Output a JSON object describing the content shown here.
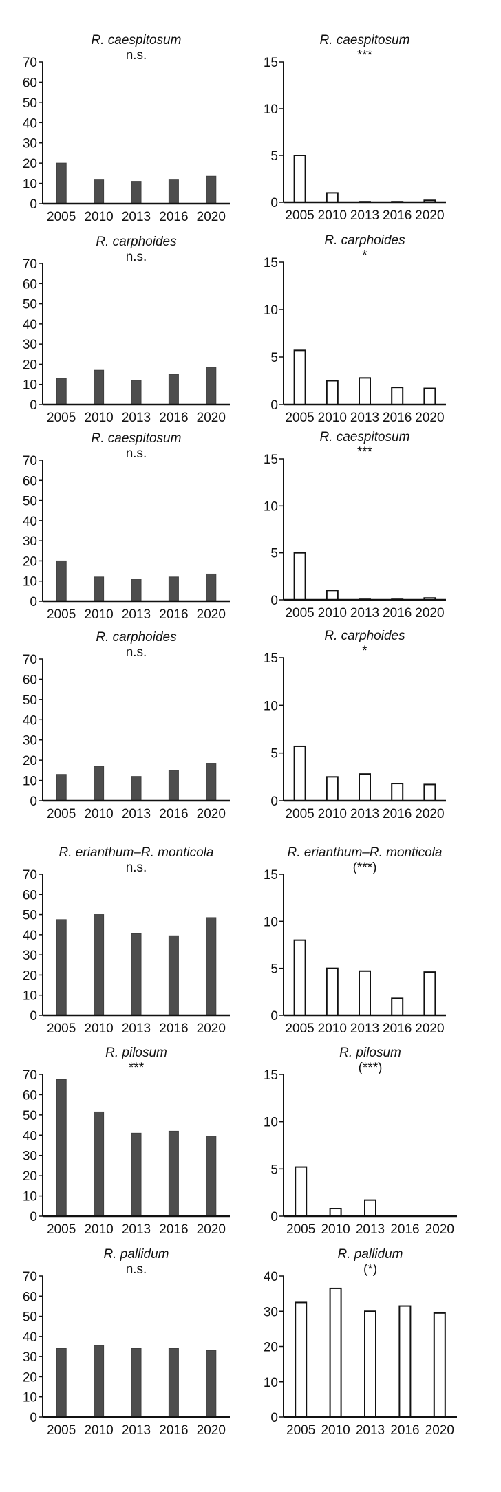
{
  "chart_data": [
    {
      "type": "bar",
      "title": "R. caespitosum",
      "subtitle": "n.s.",
      "categories": [
        "2005",
        "2010",
        "2013",
        "2016",
        "2020"
      ],
      "values": [
        20,
        12,
        11,
        12,
        13.5
      ],
      "ylim": [
        0,
        70
      ],
      "yticks": [
        0,
        10,
        20,
        30,
        40,
        50,
        60,
        70
      ],
      "bar_color": "#4d4d4d",
      "filled": true
    },
    {
      "type": "bar",
      "title": "R. caespitosum",
      "subtitle": "***",
      "categories": [
        "2005",
        "2010",
        "2013",
        "2016",
        "2020"
      ],
      "values": [
        5,
        1,
        0.05,
        0.05,
        0.2
      ],
      "ylim": [
        0,
        15
      ],
      "yticks": [
        0,
        5,
        10,
        15
      ],
      "bar_color": "#ffffff",
      "filled": false
    },
    {
      "type": "bar",
      "title": "R. carphoides",
      "subtitle": "n.s.",
      "categories": [
        "2005",
        "2010",
        "2013",
        "2016",
        "2020"
      ],
      "values": [
        13,
        17,
        12,
        15,
        18.5
      ],
      "ylim": [
        0,
        70
      ],
      "yticks": [
        0,
        10,
        20,
        30,
        40,
        50,
        60,
        70
      ],
      "bar_color": "#4d4d4d",
      "filled": true
    },
    {
      "type": "bar",
      "title": "R. carphoides",
      "subtitle": "*",
      "categories": [
        "2005",
        "2010",
        "2013",
        "2016",
        "2020"
      ],
      "values": [
        5.7,
        2.5,
        2.8,
        1.8,
        1.7
      ],
      "ylim": [
        0,
        15
      ],
      "yticks": [
        0,
        5,
        10,
        15
      ],
      "bar_color": "#ffffff",
      "filled": false
    },
    {
      "type": "bar",
      "title": "R. caespitosum",
      "subtitle": "n.s.",
      "categories": [
        "2005",
        "2010",
        "2013",
        "2016",
        "2020"
      ],
      "values": [
        20,
        12,
        11,
        12,
        13.5
      ],
      "ylim": [
        0,
        70
      ],
      "yticks": [
        0,
        10,
        20,
        30,
        40,
        50,
        60,
        70
      ],
      "bar_color": "#4d4d4d",
      "filled": true
    },
    {
      "type": "bar",
      "title": "R. caespitosum",
      "subtitle": "***",
      "categories": [
        "2005",
        "2010",
        "2013",
        "2016",
        "2020"
      ],
      "values": [
        5,
        1,
        0.05,
        0.05,
        0.2
      ],
      "ylim": [
        0,
        15
      ],
      "yticks": [
        0,
        5,
        10,
        15
      ],
      "bar_color": "#ffffff",
      "filled": false
    },
    {
      "type": "bar",
      "title": "R. carphoides",
      "subtitle": "n.s.",
      "categories": [
        "2005",
        "2010",
        "2013",
        "2016",
        "2020"
      ],
      "values": [
        13,
        17,
        12,
        15,
        18.5
      ],
      "ylim": [
        0,
        70
      ],
      "yticks": [
        0,
        10,
        20,
        30,
        40,
        50,
        60,
        70
      ],
      "bar_color": "#4d4d4d",
      "filled": true
    },
    {
      "type": "bar",
      "title": "R. carphoides",
      "subtitle": "*",
      "categories": [
        "2005",
        "2010",
        "2013",
        "2016",
        "2020"
      ],
      "values": [
        5.7,
        2.5,
        2.8,
        1.8,
        1.7
      ],
      "ylim": [
        0,
        15
      ],
      "yticks": [
        0,
        5,
        10,
        15
      ],
      "bar_color": "#ffffff",
      "filled": false
    },
    {
      "type": "bar",
      "title": "R. erianthum–R. monticola",
      "subtitle": "n.s.",
      "categories": [
        "2005",
        "2010",
        "2013",
        "2016",
        "2020"
      ],
      "values": [
        47.5,
        50,
        40.5,
        39.5,
        48.5
      ],
      "ylim": [
        0,
        70
      ],
      "yticks": [
        0,
        10,
        20,
        30,
        40,
        50,
        60,
        70
      ],
      "bar_color": "#4d4d4d",
      "filled": true
    },
    {
      "type": "bar",
      "title": "R. erianthum–R. monticola",
      "subtitle": "(***)",
      "categories": [
        "2005",
        "2010",
        "2013",
        "2016",
        "2020"
      ],
      "values": [
        8,
        5,
        4.7,
        1.8,
        4.6
      ],
      "ylim": [
        0,
        15
      ],
      "yticks": [
        0,
        5,
        10,
        15
      ],
      "bar_color": "#ffffff",
      "filled": false
    },
    {
      "type": "bar",
      "title": "R. pilosum",
      "subtitle": "***",
      "categories": [
        "2005",
        "2010",
        "2013",
        "2016",
        "2020"
      ],
      "values": [
        67.5,
        51.5,
        41,
        42,
        39.5
      ],
      "ylim": [
        0,
        70
      ],
      "yticks": [
        0,
        10,
        20,
        30,
        40,
        50,
        60,
        70
      ],
      "bar_color": "#4d4d4d",
      "filled": true
    },
    {
      "type": "bar",
      "title": "R. pilosum",
      "subtitle": "(***)",
      "categories": [
        "2005",
        "2010",
        "2013",
        "2016",
        "2020"
      ],
      "values": [
        5.2,
        0.8,
        1.7,
        0.05,
        0.05
      ],
      "ylim": [
        0,
        15
      ],
      "yticks": [
        0,
        5,
        10,
        15
      ],
      "bar_color": "#ffffff",
      "filled": false
    },
    {
      "type": "bar",
      "title": "R. pallidum",
      "subtitle": "n.s.",
      "categories": [
        "2005",
        "2010",
        "2013",
        "2016",
        "2020"
      ],
      "values": [
        34,
        35.5,
        34,
        34,
        33
      ],
      "ylim": [
        0,
        70
      ],
      "yticks": [
        0,
        10,
        20,
        30,
        40,
        50,
        60,
        70
      ],
      "bar_color": "#4d4d4d",
      "filled": true
    },
    {
      "type": "bar",
      "title": "R. pallidum",
      "subtitle": "(*)",
      "categories": [
        "2005",
        "2010",
        "2013",
        "2016",
        "2020"
      ],
      "values": [
        32.5,
        36.5,
        30,
        31.5,
        29.5
      ],
      "ylim": [
        0,
        40
      ],
      "yticks": [
        0,
        10,
        20,
        30,
        40
      ],
      "bar_color": "#ffffff",
      "filled": false
    }
  ]
}
